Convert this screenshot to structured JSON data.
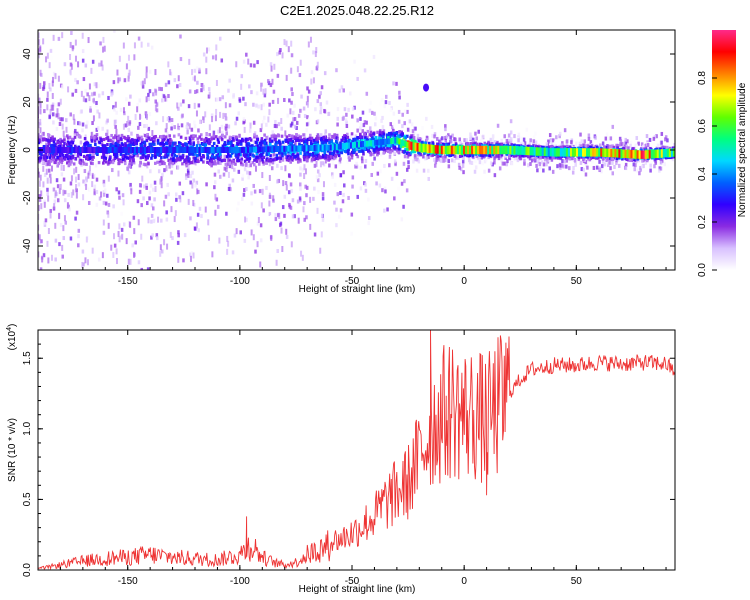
{
  "title": "C2E1.2025.048.22.25.R12",
  "chart_data": [
    {
      "type": "heatmap",
      "xlabel": "Height of straight line (km)",
      "ylabel": "Frequency (Hz)",
      "xlim": [
        -190,
        94
      ],
      "ylim": [
        -50,
        50
      ],
      "xticks": [
        -150,
        -100,
        -50,
        0,
        50
      ],
      "yticks": [
        -40,
        -20,
        0,
        20,
        40
      ],
      "colorbar": {
        "label": "Normalized spectral amplitude",
        "range": [
          0.0,
          1.0
        ],
        "ticks": [
          0.0,
          0.2,
          0.4,
          0.6,
          0.8
        ],
        "colormap": [
          "#ffffff",
          "#d8c0ff",
          "#8a2be2",
          "#3000ff",
          "#0060ff",
          "#00d8ff",
          "#00ff80",
          "#60ff00",
          "#ffff00",
          "#ff8000",
          "#ff0000",
          "#ff2a8a"
        ]
      },
      "ridge": {
        "x": [
          -190,
          -150,
          -100,
          -60,
          -40,
          -30,
          -25,
          -20,
          -10,
          0,
          10,
          20,
          40,
          60,
          80,
          94
        ],
        "center_hz": [
          0,
          0,
          0,
          1,
          3,
          4,
          2,
          1,
          0,
          0,
          0,
          0,
          -1,
          -1,
          -2,
          -1
        ],
        "peak_amplitude": [
          0.3,
          0.35,
          0.4,
          0.45,
          0.5,
          0.55,
          0.9,
          0.9,
          0.9,
          0.85,
          0.8,
          0.7,
          0.6,
          0.85,
          0.95,
          0.6
        ]
      },
      "annotations": [
        {
          "x": -17,
          "y": 26,
          "amplitude": 0.25
        }
      ]
    },
    {
      "type": "line",
      "xlabel": "Height of straight line (km)",
      "ylabel": "SNR (10 * v/v)",
      "y_multiplier": "(x10",
      "y_multiplier_exp": "4",
      "y_multiplier_close": ")",
      "xlim": [
        -190,
        94
      ],
      "ylim": [
        0,
        1.7
      ],
      "xticks": [
        -150,
        -100,
        -50,
        0,
        50
      ],
      "yticks": [
        0.0,
        0.5,
        1.0,
        1.5
      ],
      "series": [
        {
          "color": "#ee3333",
          "x": [
            -190,
            -180,
            -170,
            -160,
            -150,
            -140,
            -130,
            -120,
            -110,
            -100,
            -95,
            -90,
            -85,
            -80,
            -75,
            -70,
            -65,
            -60,
            -55,
            -50,
            -45,
            -40,
            -35,
            -30,
            -25,
            -20,
            -15,
            -10,
            -5,
            0,
            5,
            10,
            15,
            20,
            25,
            30,
            40,
            50,
            60,
            70,
            80,
            90,
            94
          ],
          "y": [
            0.01,
            0.04,
            0.07,
            0.09,
            0.1,
            0.12,
            0.1,
            0.09,
            0.08,
            0.12,
            0.2,
            0.1,
            0.06,
            0.04,
            0.06,
            0.12,
            0.16,
            0.2,
            0.22,
            0.26,
            0.32,
            0.38,
            0.48,
            0.55,
            0.62,
            0.8,
            1.0,
            1.1,
            1.15,
            1.1,
            1.1,
            1.05,
            1.15,
            1.25,
            1.35,
            1.42,
            1.45,
            1.45,
            1.47,
            1.46,
            1.47,
            1.46,
            1.4
          ],
          "spikes": [
            [
              -97,
              0.38
            ],
            [
              -15,
              1.72
            ],
            [
              -8,
              0.88
            ],
            [
              10,
              0.53
            ]
          ]
        }
      ]
    }
  ]
}
